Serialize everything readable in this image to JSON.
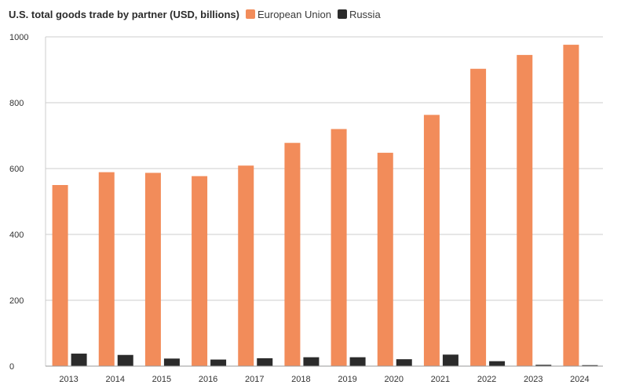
{
  "chart_data": {
    "type": "bar",
    "title": "U.S. total goods trade by partner (USD, billions)",
    "categories": [
      "2013",
      "2014",
      "2015",
      "2016",
      "2017",
      "2018",
      "2019",
      "2020",
      "2021",
      "2022",
      "2023",
      "2024"
    ],
    "series": [
      {
        "name": "European Union",
        "color": "#f28c5a",
        "values": [
          550,
          589,
          587,
          577,
          609,
          678,
          720,
          648,
          763,
          903,
          945,
          976
        ]
      },
      {
        "name": "Russia",
        "color": "#2b2b2b",
        "values": [
          38,
          34,
          23,
          20,
          24,
          27,
          27,
          21,
          35,
          15,
          4,
          3
        ]
      }
    ],
    "ylim": [
      0,
      1000
    ],
    "yticks": [
      0,
      200,
      400,
      600,
      800,
      1000
    ],
    "xlabel": "",
    "ylabel": "",
    "grid": true,
    "legend_position": "top"
  }
}
